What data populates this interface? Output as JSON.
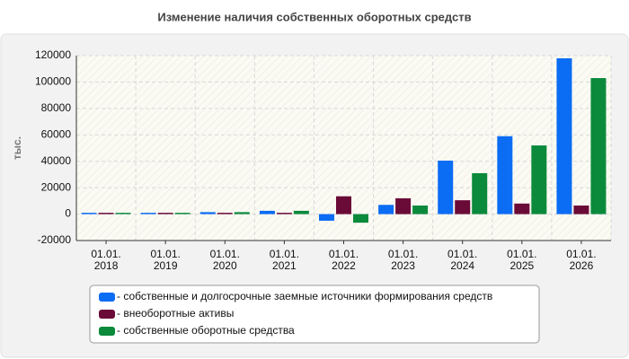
{
  "chart_data": {
    "type": "bar",
    "title": "Изменение наличия собственных оборотных средств",
    "ylabel": "тыс.",
    "categories": [
      [
        "01.01.",
        "2018"
      ],
      [
        "01.01.",
        "2019"
      ],
      [
        "01.01.",
        "2020"
      ],
      [
        "01.01.",
        "2021"
      ],
      [
        "01.01.",
        "2022"
      ],
      [
        "01.01.",
        "2023"
      ],
      [
        "01.01.",
        "2024"
      ],
      [
        "01.01.",
        "2025"
      ],
      [
        "01.01.",
        "2026"
      ]
    ],
    "series": [
      {
        "name": "- собственные и долгосрочные заемные источники формирования средств",
        "color": "#0b6cf4",
        "values": [
          1000,
          1000,
          1500,
          2500,
          -5000,
          7000,
          40500,
          59000,
          118000
        ]
      },
      {
        "name": "- внеоборотные активы",
        "color": "#6a0a37",
        "values": [
          1000,
          1000,
          1000,
          1000,
          13500,
          12000,
          10500,
          8000,
          6500
        ]
      },
      {
        "name": "- собственные оборотные средства",
        "color": "#0b8a3b",
        "values": [
          1000,
          1000,
          1500,
          2500,
          -6500,
          6500,
          31000,
          52000,
          103000
        ]
      }
    ],
    "ylim": [
      -20000,
      120000
    ],
    "yticks": [
      -20000,
      0,
      20000,
      40000,
      60000,
      80000,
      100000,
      120000
    ],
    "grid": true,
    "legend": "bottom"
  }
}
